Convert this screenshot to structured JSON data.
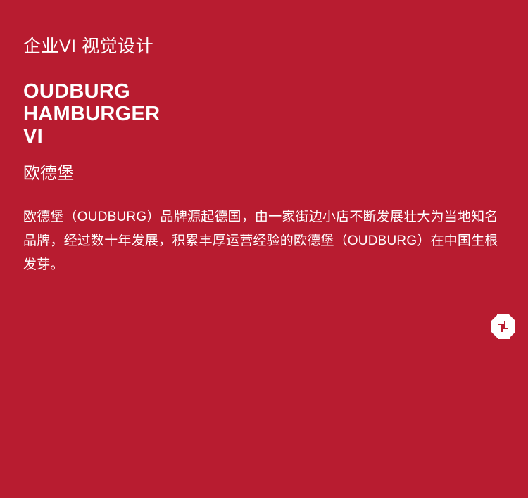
{
  "header": {
    "subtitle": "企业VI 视觉设计"
  },
  "brand": {
    "line1": "OUDBURG",
    "line2": "HAMBURGER",
    "line3": "VI"
  },
  "chinese_name": "欧德堡",
  "description": "欧德堡（OUDBURG）品牌源起德国，由一家街边小店不断发展壮大为当地知名品牌，经过数十年发展，积累丰厚运营经验的欧德堡（OUDBURG）在中国生根发芽。",
  "logo": {
    "icon": "oudburg-logo-icon",
    "color": "#ffffff"
  },
  "colors": {
    "background": "#b81c30",
    "text": "#ffffff"
  }
}
